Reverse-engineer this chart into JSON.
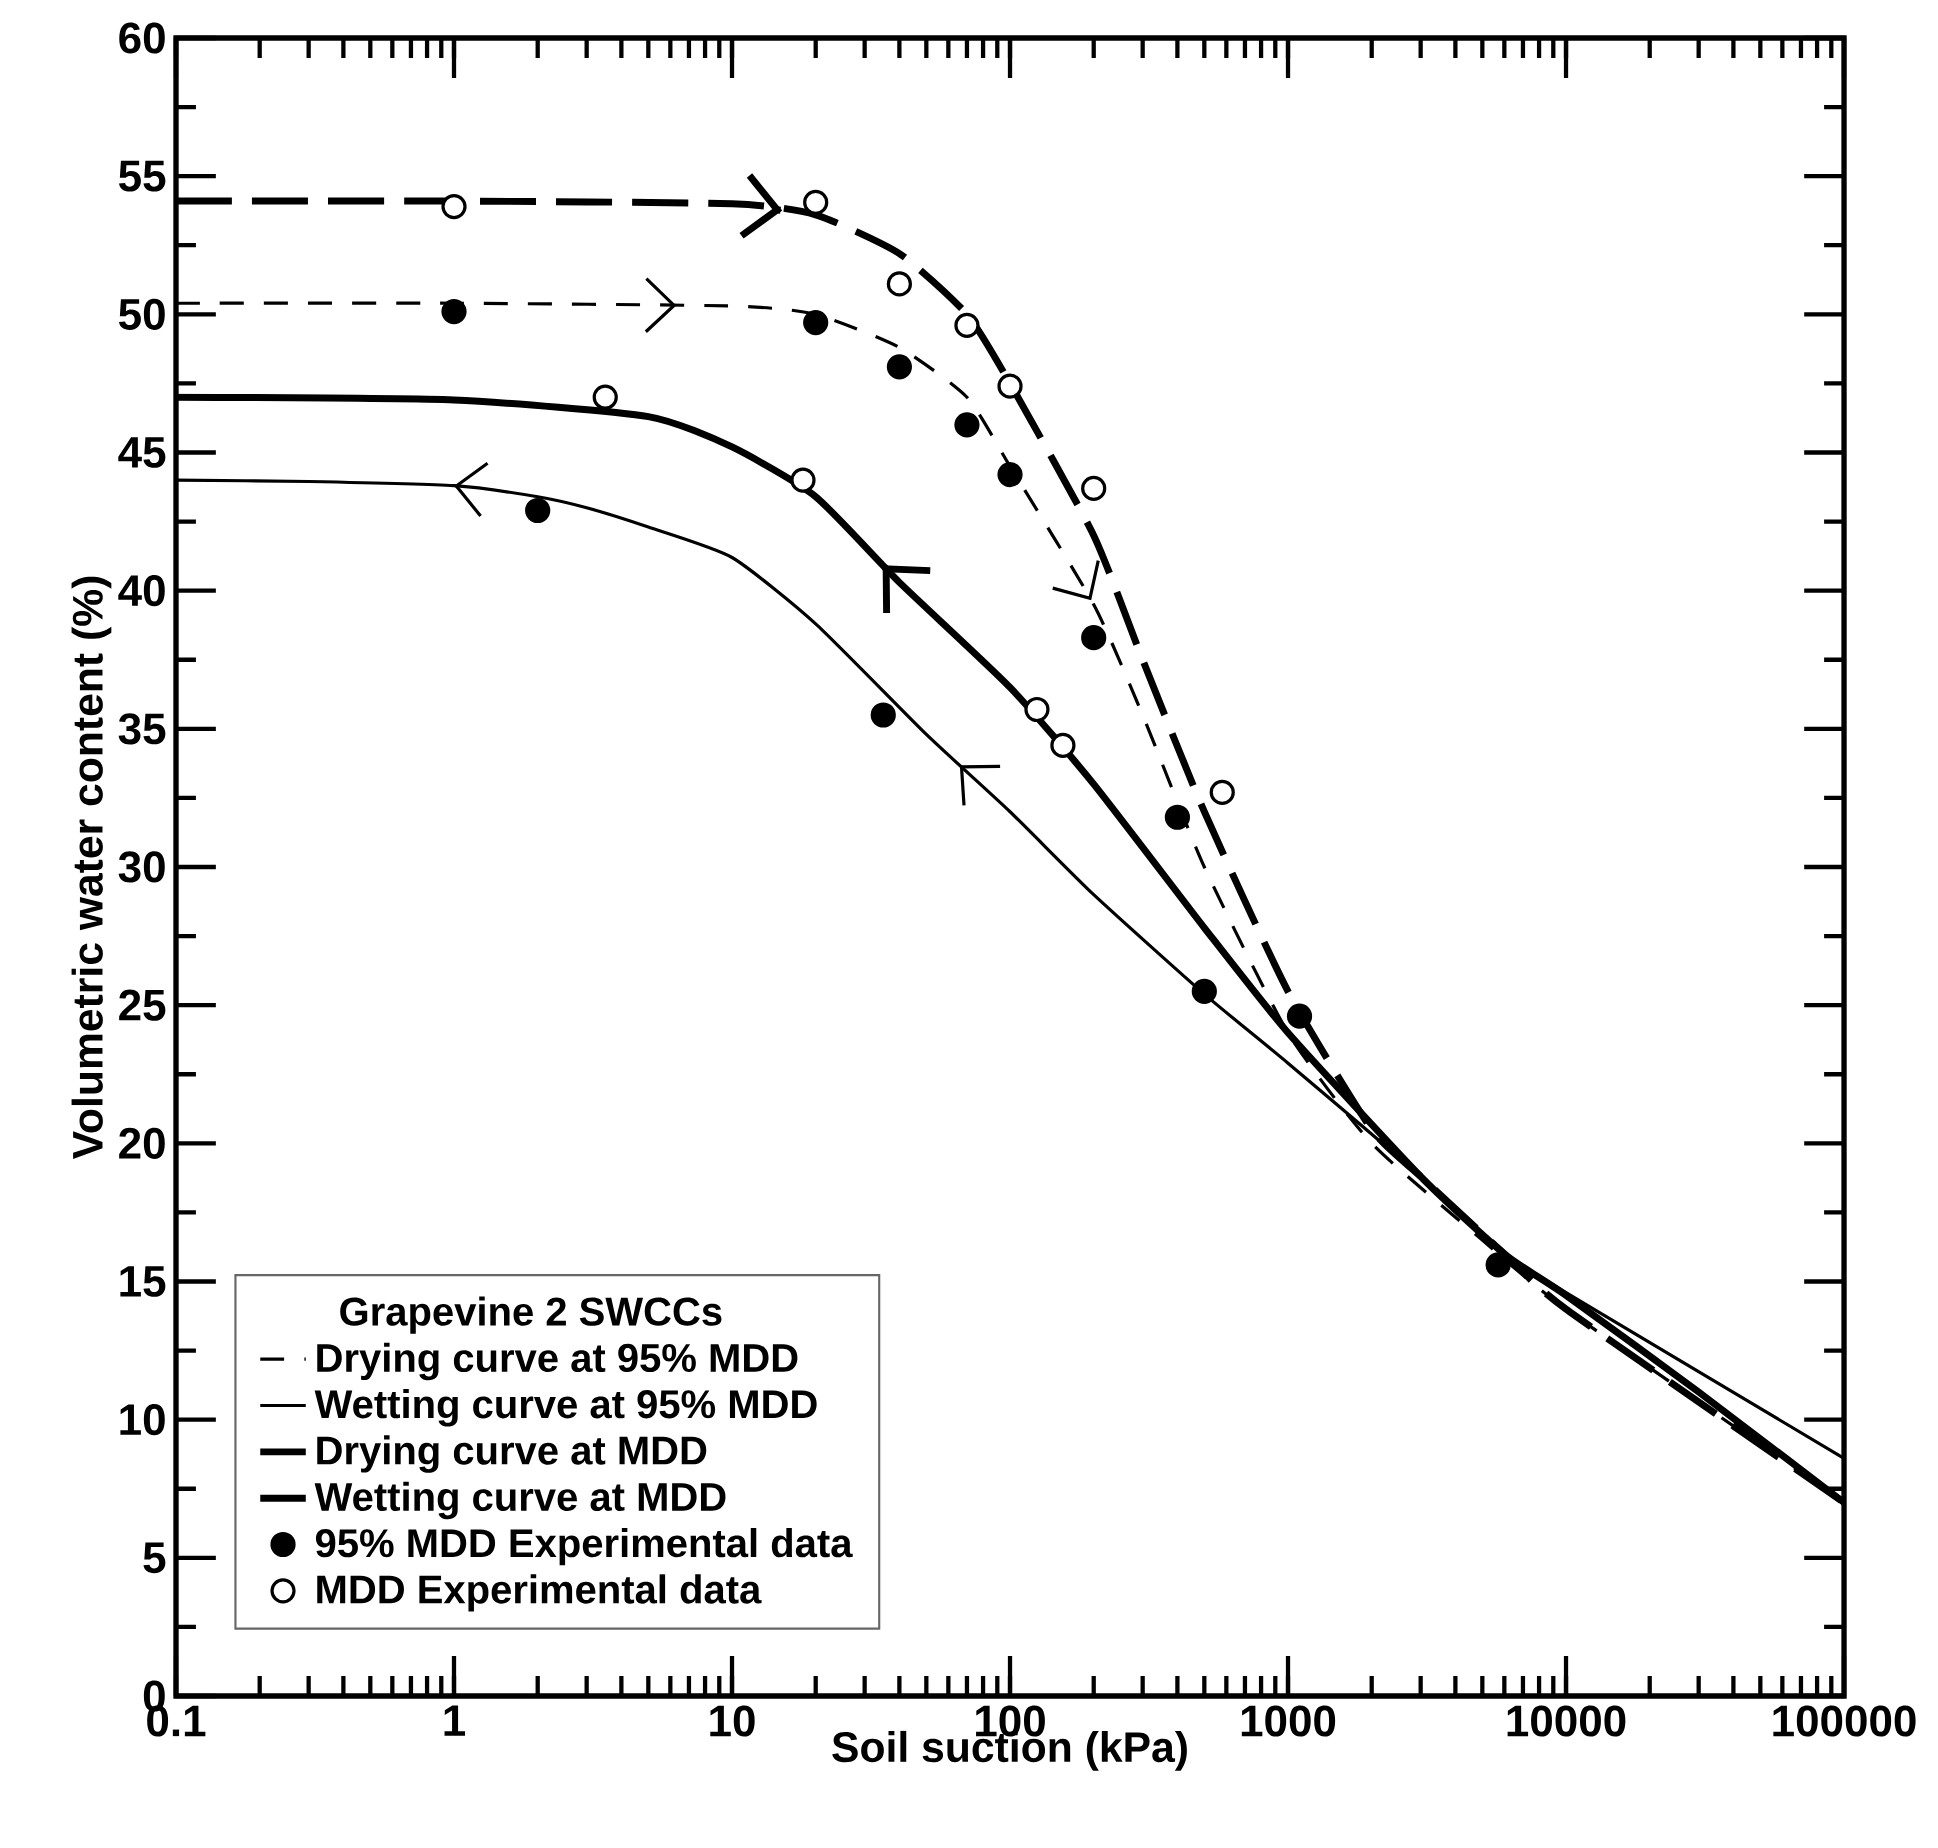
{
  "chart_data": {
    "type": "line",
    "xlabel": "Soil suction (kPa)",
    "ylabel": "Volumetric water content (%)",
    "legend_title": "Grapevine 2 SWCCs",
    "log": "x",
    "grid": false,
    "legend": "bottom left",
    "marker": "circle",
    "xlim": [
      0.1,
      100000
    ],
    "xticks": [
      0.1,
      1,
      10,
      100,
      1000,
      10000,
      100000
    ],
    "ylim": [
      0,
      60
    ],
    "yticks": [
      0,
      5,
      10,
      15,
      20,
      25,
      30,
      35,
      40,
      45,
      50,
      55,
      60
    ],
    "series": [
      {
        "name": "Drying curve at 95% MDD",
        "type": "line",
        "marker": "none",
        "line_style": "dashed",
        "color": "#000000",
        "x": [
          0.1,
          1,
          10,
          20,
          40,
          70,
          100,
          200,
          300,
          500,
          1000,
          2000,
          5000,
          10000,
          100000
        ],
        "values": [
          50.4,
          50.4,
          50.3,
          50.0,
          48.8,
          47.0,
          44.5,
          39.5,
          35.5,
          30.0,
          24.0,
          20.0,
          16.5,
          14.0,
          7.0
        ]
      },
      {
        "name": "Wetting curve at 95% MDD",
        "type": "line",
        "marker": "none",
        "line_style": "solid",
        "color": "#000000",
        "x": [
          0.1,
          0.3,
          1,
          2,
          3,
          5,
          10,
          20,
          50,
          100,
          200,
          500,
          1000,
          3000,
          6000,
          10000,
          100000
        ],
        "values": [
          44.0,
          43.95,
          43.8,
          43.4,
          43.0,
          42.3,
          41.2,
          38.8,
          34.8,
          32.0,
          29.0,
          25.4,
          22.9,
          18.8,
          16.0,
          14.6,
          8.6
        ]
      },
      {
        "name": "Drying curve at MDD",
        "type": "line",
        "marker": "none",
        "line_style": "dashed",
        "color": "#000000",
        "x": [
          0.1,
          1,
          10,
          20,
          40,
          70,
          100,
          200,
          300,
          500,
          1000,
          2000,
          3000,
          6000,
          10000,
          100000
        ],
        "values": [
          54.1,
          54.1,
          54.0,
          53.6,
          52.2,
          50.0,
          47.5,
          42.0,
          37.5,
          32.0,
          25.5,
          20.5,
          18.8,
          16.0,
          14.0,
          7.0
        ]
      },
      {
        "name": "Wetting curve at MDD",
        "type": "line",
        "marker": "none",
        "line_style": "solid",
        "color": "#000000",
        "x": [
          0.1,
          1,
          5,
          10,
          20,
          40,
          100,
          200,
          500,
          1000,
          3000,
          6000,
          10000,
          30000,
          100000
        ],
        "values": [
          47.0,
          46.9,
          46.3,
          45.2,
          43.4,
          40.3,
          36.5,
          33.0,
          27.8,
          24.0,
          18.8,
          16.0,
          14.5,
          11.0,
          7.0
        ]
      },
      {
        "name": "95% MDD Experimental data",
        "type": "scatter",
        "color": "#000000",
        "x": [
          1,
          2,
          20,
          40,
          70,
          100,
          35,
          200,
          400,
          500,
          1100,
          5700
        ],
        "values": [
          50.1,
          42.9,
          49.7,
          48.1,
          46.0,
          44.2,
          35.5,
          38.3,
          31.8,
          25.5,
          24.6,
          15.6
        ]
      },
      {
        "name": "MDD Experimental data",
        "type": "scatter",
        "color": "#000000",
        "x": [
          1,
          20,
          40,
          70,
          100,
          3.5,
          18,
          200,
          125,
          155,
          580
        ],
        "values": [
          53.9,
          54.05,
          51.1,
          49.6,
          47.4,
          47.0,
          44.0,
          43.7,
          35.7,
          34.4,
          32.7
        ]
      }
    ]
  }
}
